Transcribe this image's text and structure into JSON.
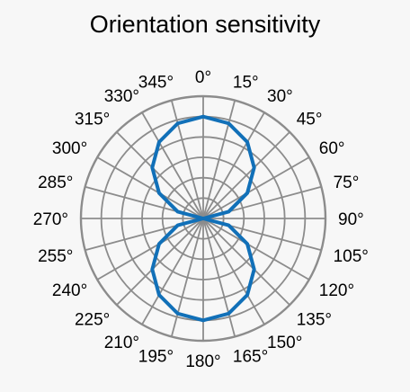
{
  "chart_data": {
    "type": "polar-line",
    "title": "Orientation sensitivity",
    "theta": [
      0,
      15,
      30,
      45,
      60,
      75,
      90,
      105,
      120,
      135,
      150,
      165,
      180,
      195,
      210,
      225,
      240,
      255,
      270,
      285,
      300,
      315,
      330,
      345
    ],
    "theta_tick_labels": [
      "0°",
      "15°",
      "30°",
      "45°",
      "60°",
      "75°",
      "90°",
      "105°",
      "120°",
      "135°",
      "150°",
      "165°",
      "180°",
      "195°",
      "210°",
      "225°",
      "240°",
      "255°",
      "270°",
      "285°",
      "300°",
      "315°",
      "330°",
      "345°"
    ],
    "r": [
      1.0,
      0.966,
      0.866,
      0.707,
      0.5,
      0.259,
      0.0,
      0.259,
      0.5,
      0.707,
      0.866,
      0.966,
      1.0,
      0.966,
      0.866,
      0.707,
      0.5,
      0.259,
      0.0,
      0.259,
      0.5,
      0.707,
      0.866,
      0.966
    ],
    "r_range": [
      0,
      1.2
    ],
    "r_ring_step": 0.2,
    "grid": true,
    "series_color": "#1170b8",
    "grid_color": "#8c8c8c"
  }
}
